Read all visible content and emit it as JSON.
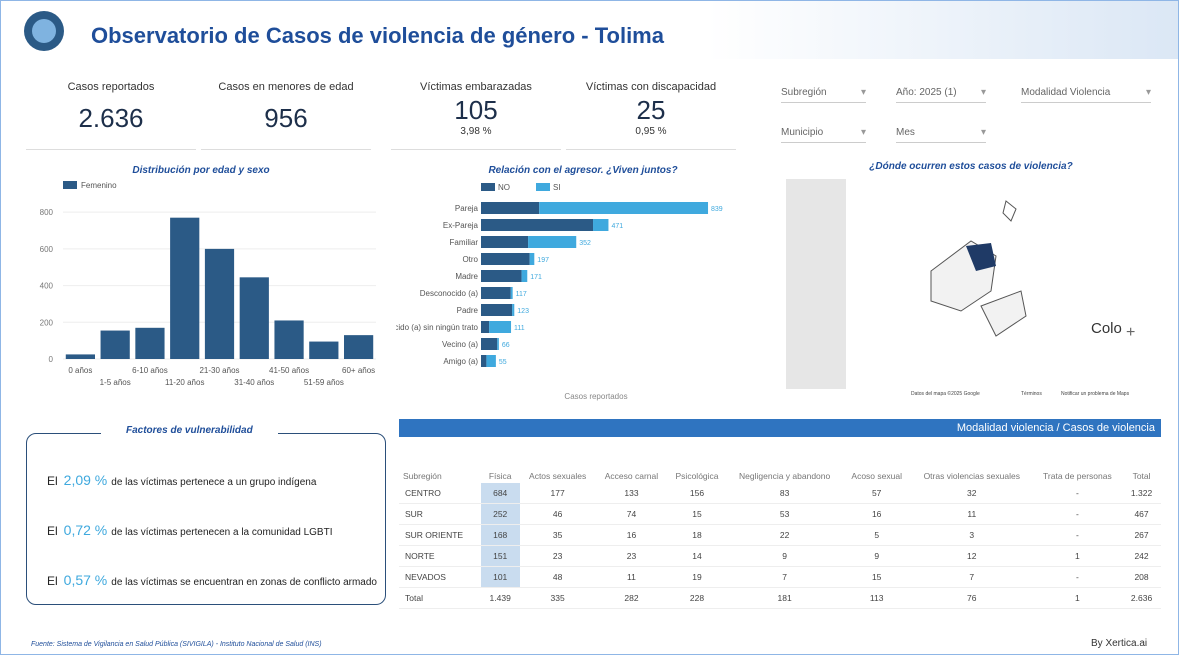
{
  "header": {
    "title": "Observatorio de  Casos de violencia de género - Tolima"
  },
  "kpis": [
    {
      "label": "Casos reportados",
      "value": "2.636"
    },
    {
      "label": "Casos en menores de edad",
      "value": "956"
    },
    {
      "label": "Víctimas embarazadas",
      "value": "105",
      "sub": "3,98 %"
    },
    {
      "label": "Víctimas con discapacidad",
      "value": "25",
      "sub": "0,95 %"
    }
  ],
  "filters": [
    "Subregión",
    "Año: 2025 (1)",
    "Modalidad Violencia",
    "Municipio",
    "Mes"
  ],
  "chart_data": [
    {
      "type": "bar",
      "title": "Distribución por edad y sexo",
      "categories": [
        "0 años",
        "1-5 años",
        "6-10 años",
        "11-20 años",
        "21-30 años",
        "31-40 años",
        "41-50 años",
        "51-59 años",
        "60+ años"
      ],
      "series": [
        {
          "name": "Femenino",
          "color": "#2b5a86",
          "values": [
            25,
            155,
            170,
            770,
            600,
            445,
            210,
            95,
            130
          ]
        }
      ],
      "ylim": [
        0,
        850
      ],
      "yticks": [
        0,
        200,
        400,
        600,
        800
      ],
      "grid": true
    },
    {
      "type": "barh",
      "title": "Relación con el agresor. ¿Viven juntos?",
      "xlabel": "Casos reportados",
      "categories": [
        "Pareja",
        "Ex-Pareja",
        "Familiar",
        "Otro",
        "Madre",
        "Desconocido (a)",
        "Padre",
        "Conocido (a) sin ningún trato",
        "Vecino (a)",
        "Amigo (a)"
      ],
      "series": [
        {
          "name": "NO",
          "color": "#2b5a86",
          "values": [
            215,
            414,
            174,
            180,
            150,
            110,
            115,
            30,
            60,
            20
          ]
        },
        {
          "name": "SI",
          "color": "#3fa9de",
          "values": [
            624,
            57,
            178,
            17,
            21,
            7,
            8,
            81,
            6,
            35
          ]
        }
      ],
      "totals": [
        839,
        471,
        352,
        197,
        171,
        117,
        123,
        111,
        66,
        55
      ],
      "xlim": [
        0,
        850
      ]
    }
  ],
  "map": {
    "title": "¿Dónde ocurren estos casos de violencia?",
    "label": "Colo",
    "attribution": "Datos del mapa ©2025 Google",
    "terms": "Términos",
    "report": "Notificar un problema de Maps"
  },
  "vulnerability": {
    "title": "Factores de vulnerabilidad",
    "items": [
      {
        "lead": "El",
        "value": "2,09 %",
        "text": "de las víctimas pertenece a un grupo indígena"
      },
      {
        "lead": "El",
        "value": "0,72 %",
        "text": "de las víctimas pertenecen a la comunidad LGBTI"
      },
      {
        "lead": "El",
        "value": "0,57 %",
        "text": "de las víctimas se encuentran en zonas de conflicto armado"
      }
    ]
  },
  "table": {
    "caption": "Modalidad violencia / Casos de violencia",
    "columns": [
      "Subregión",
      "Física",
      "Actos sexuales",
      "Acceso carnal",
      "Psicológica",
      "Negligencia y abandono",
      "Acoso sexual",
      "Otras violencias sexuales",
      "Trata de personas",
      "Total"
    ],
    "rows": [
      [
        "CENTRO",
        "684",
        "177",
        "133",
        "156",
        "83",
        "57",
        "32",
        "-",
        "1.322"
      ],
      [
        "SUR",
        "252",
        "46",
        "74",
        "15",
        "53",
        "16",
        "11",
        "-",
        "467"
      ],
      [
        "SUR ORIENTE",
        "168",
        "35",
        "16",
        "18",
        "22",
        "5",
        "3",
        "-",
        "267"
      ],
      [
        "NORTE",
        "151",
        "23",
        "23",
        "14",
        "9",
        "9",
        "12",
        "1",
        "242"
      ],
      [
        "NEVADOS",
        "101",
        "48",
        "11",
        "19",
        "7",
        "15",
        "7",
        "-",
        "208"
      ]
    ],
    "total": [
      "Total",
      "1.439",
      "335",
      "282",
      "228",
      "181",
      "113",
      "76",
      "1",
      "2.636"
    ]
  },
  "footer": {
    "source": "Fuente: Sistema de Vigilancia en Salud Pública (SIVIGILA) - Instituto Nacional de Salud (INS)",
    "credit": "By Xertica.ai"
  }
}
